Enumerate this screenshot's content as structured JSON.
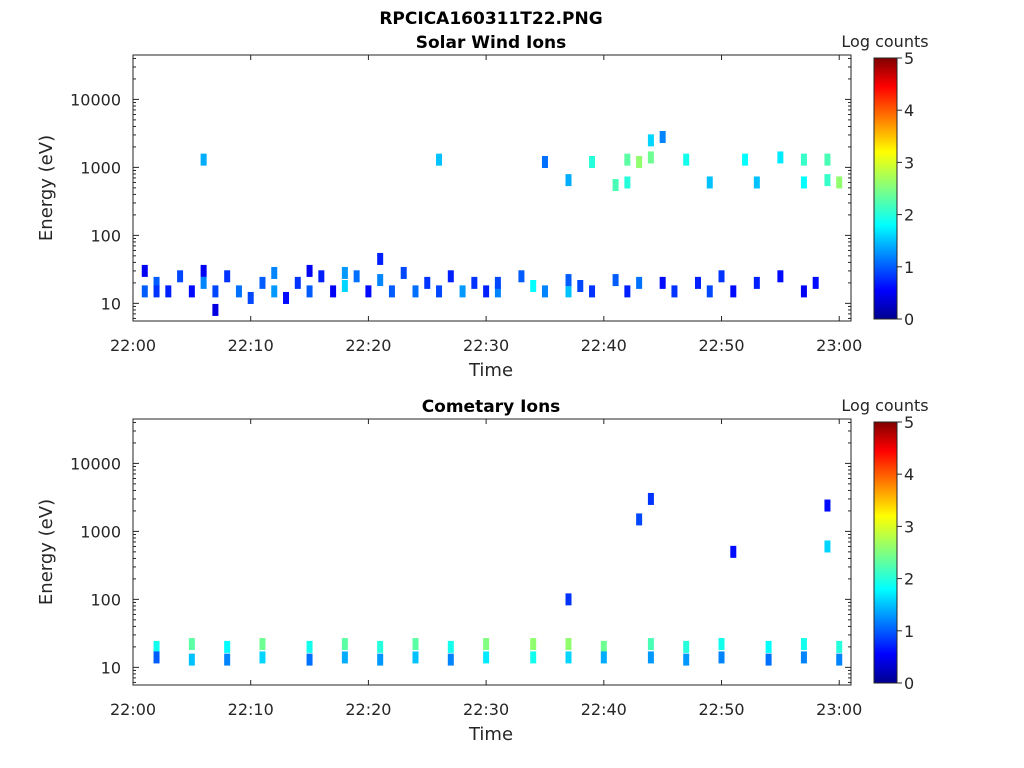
{
  "figure_title": "RPCICA160311T22.PNG",
  "chart_data": [
    {
      "type": "heatmap",
      "title": "Solar Wind Ions",
      "xlabel": "Time",
      "ylabel": "Energy (eV)",
      "x_ticks": [
        "22:00",
        "22:10",
        "22:20",
        "22:30",
        "22:40",
        "22:50",
        "23:00"
      ],
      "x_range": [
        "22:00",
        "23:01"
      ],
      "y_scale": "log",
      "y_ticks": [
        10,
        100,
        1000,
        10000
      ],
      "y_tick_labels": [
        "10",
        "100",
        "1000",
        "10000"
      ],
      "y_range": [
        5.5,
        45000
      ],
      "colorbar": {
        "title": "Log counts",
        "min": 0,
        "max": 5,
        "ticks": [
          "0",
          "1",
          "2",
          "3",
          "4",
          "5"
        ],
        "colormap": "jet"
      },
      "cells": [
        [
          "22:01",
          15,
          1
        ],
        [
          "22:01",
          30,
          0.5
        ],
        [
          "22:02",
          20,
          1
        ],
        [
          "22:02",
          15,
          0.8
        ],
        [
          "22:03",
          15,
          0.7
        ],
        [
          "22:04",
          25,
          0.9
        ],
        [
          "22:05",
          15,
          0.6
        ],
        [
          "22:06",
          30,
          0.5
        ],
        [
          "22:06",
          20,
          1.2
        ],
        [
          "22:07",
          15,
          0.9
        ],
        [
          "22:07",
          8,
          0.4
        ],
        [
          "22:08",
          25,
          0.8
        ],
        [
          "22:09",
          15,
          1.1
        ],
        [
          "22:10",
          12,
          0.9
        ],
        [
          "22:11",
          20,
          1.0
        ],
        [
          "22:12",
          28,
          1.2
        ],
        [
          "22:12",
          15,
          1.3
        ],
        [
          "22:13",
          12,
          0.6
        ],
        [
          "22:14",
          20,
          0.8
        ],
        [
          "22:15",
          30,
          0.5
        ],
        [
          "22:15",
          15,
          1.0
        ],
        [
          "22:16",
          25,
          0.7
        ],
        [
          "22:17",
          15,
          0.5
        ],
        [
          "22:18",
          28,
          1.3
        ],
        [
          "22:18",
          18,
          1.6
        ],
        [
          "22:19",
          25,
          1.1
        ],
        [
          "22:20",
          15,
          0.6
        ],
        [
          "22:21",
          22,
          1.2
        ],
        [
          "22:21",
          45,
          0.7
        ],
        [
          "22:22",
          15,
          1.0
        ],
        [
          "22:23",
          28,
          0.9
        ],
        [
          "22:24",
          15,
          1.1
        ],
        [
          "22:25",
          20,
          0.8
        ],
        [
          "22:26",
          15,
          0.9
        ],
        [
          "22:27",
          25,
          0.7
        ],
        [
          "22:28",
          15,
          1.3
        ],
        [
          "22:29",
          20,
          0.8
        ],
        [
          "22:30",
          15,
          0.7
        ],
        [
          "22:31",
          15,
          1.2
        ],
        [
          "22:31",
          20,
          0.9
        ],
        [
          "22:33",
          25,
          1.0
        ],
        [
          "22:34",
          18,
          1.8
        ],
        [
          "22:35",
          15,
          1.2
        ],
        [
          "22:37",
          15,
          1.5
        ],
        [
          "22:37",
          22,
          1.0
        ],
        [
          "22:38",
          18,
          0.9
        ],
        [
          "22:39",
          15,
          0.8
        ],
        [
          "22:41",
          22,
          1.0
        ],
        [
          "22:42",
          15,
          0.7
        ],
        [
          "22:43",
          20,
          1.1
        ],
        [
          "22:45",
          20,
          0.6
        ],
        [
          "22:46",
          15,
          0.8
        ],
        [
          "22:48",
          20,
          0.7
        ],
        [
          "22:49",
          15,
          0.9
        ],
        [
          "22:50",
          25,
          0.8
        ],
        [
          "22:51",
          15,
          0.6
        ],
        [
          "22:53",
          20,
          0.7
        ],
        [
          "22:55",
          25,
          0.6
        ],
        [
          "22:57",
          15,
          0.5
        ],
        [
          "22:58",
          20,
          0.6
        ],
        [
          "22:42",
          1300,
          2.3
        ],
        [
          "22:43",
          1200,
          2.6
        ],
        [
          "22:44",
          1400,
          2.4
        ],
        [
          "22:42",
          600,
          2.0
        ],
        [
          "22:41",
          550,
          2.2
        ],
        [
          "22:47",
          1300,
          1.9
        ],
        [
          "22:52",
          1300,
          1.8
        ],
        [
          "22:55",
          1400,
          1.7
        ],
        [
          "22:57",
          1300,
          2.1
        ],
        [
          "22:59",
          1300,
          2.2
        ],
        [
          "23:00",
          600,
          2.6
        ],
        [
          "22:59",
          650,
          2.1
        ],
        [
          "22:57",
          600,
          1.8
        ],
        [
          "22:53",
          600,
          1.5
        ],
        [
          "22:49",
          600,
          1.5
        ],
        [
          "22:39",
          1200,
          2.0
        ],
        [
          "22:37",
          650,
          1.4
        ],
        [
          "22:26",
          1300,
          1.5
        ],
        [
          "22:06",
          1300,
          1.4
        ],
        [
          "22:44",
          2500,
          1.6
        ],
        [
          "22:45",
          2800,
          1.2
        ],
        [
          "22:35",
          1200,
          1.1
        ]
      ]
    },
    {
      "type": "heatmap",
      "title": "Cometary Ions",
      "xlabel": "Time",
      "ylabel": "Energy (eV)",
      "x_ticks": [
        "22:00",
        "22:10",
        "22:20",
        "22:30",
        "22:40",
        "22:50",
        "23:00"
      ],
      "x_range": [
        "22:00",
        "23:01"
      ],
      "y_scale": "log",
      "y_ticks": [
        10,
        100,
        1000,
        10000
      ],
      "y_tick_labels": [
        "10",
        "100",
        "1000",
        "10000"
      ],
      "y_range": [
        5.5,
        45000
      ],
      "colorbar": {
        "title": "Log counts",
        "min": 0,
        "max": 5,
        "ticks": [
          "0",
          "1",
          "2",
          "3",
          "4",
          "5"
        ],
        "colormap": "jet"
      },
      "cells": [
        [
          "22:02",
          20,
          1.9
        ],
        [
          "22:02",
          14,
          1.0
        ],
        [
          "22:05",
          22,
          2.3
        ],
        [
          "22:05",
          13,
          1.5
        ],
        [
          "22:08",
          20,
          1.8
        ],
        [
          "22:08",
          13,
          1.2
        ],
        [
          "22:11",
          22,
          2.4
        ],
        [
          "22:11",
          14,
          1.6
        ],
        [
          "22:15",
          20,
          1.9
        ],
        [
          "22:15",
          13,
          1.1
        ],
        [
          "22:18",
          22,
          2.3
        ],
        [
          "22:18",
          14,
          1.4
        ],
        [
          "22:21",
          20,
          2.0
        ],
        [
          "22:21",
          13,
          1.3
        ],
        [
          "22:24",
          22,
          2.3
        ],
        [
          "22:24",
          14,
          1.5
        ],
        [
          "22:27",
          20,
          1.9
        ],
        [
          "22:27",
          13,
          1.2
        ],
        [
          "22:30",
          22,
          2.5
        ],
        [
          "22:30",
          14,
          1.7
        ],
        [
          "22:34",
          22,
          2.6
        ],
        [
          "22:34",
          14,
          1.9
        ],
        [
          "22:37",
          22,
          2.6
        ],
        [
          "22:37",
          14,
          1.6
        ],
        [
          "22:40",
          20,
          2.4
        ],
        [
          "22:40",
          14,
          1.4
        ],
        [
          "22:44",
          22,
          2.2
        ],
        [
          "22:44",
          14,
          1.3
        ],
        [
          "22:47",
          20,
          2.0
        ],
        [
          "22:47",
          13,
          1.3
        ],
        [
          "22:50",
          22,
          1.9
        ],
        [
          "22:50",
          14,
          1.2
        ],
        [
          "22:54",
          20,
          1.8
        ],
        [
          "22:54",
          13,
          1.1
        ],
        [
          "22:57",
          22,
          1.9
        ],
        [
          "22:57",
          14,
          1.2
        ],
        [
          "23:00",
          20,
          2.0
        ],
        [
          "23:00",
          13,
          1.2
        ],
        [
          "22:37",
          100,
          0.8
        ],
        [
          "22:43",
          1500,
          0.9
        ],
        [
          "22:44",
          3000,
          0.8
        ],
        [
          "22:51",
          500,
          0.6
        ],
        [
          "22:59",
          600,
          1.6
        ],
        [
          "22:59",
          2400,
          0.6
        ]
      ]
    }
  ],
  "colorbar_title": "Log counts"
}
